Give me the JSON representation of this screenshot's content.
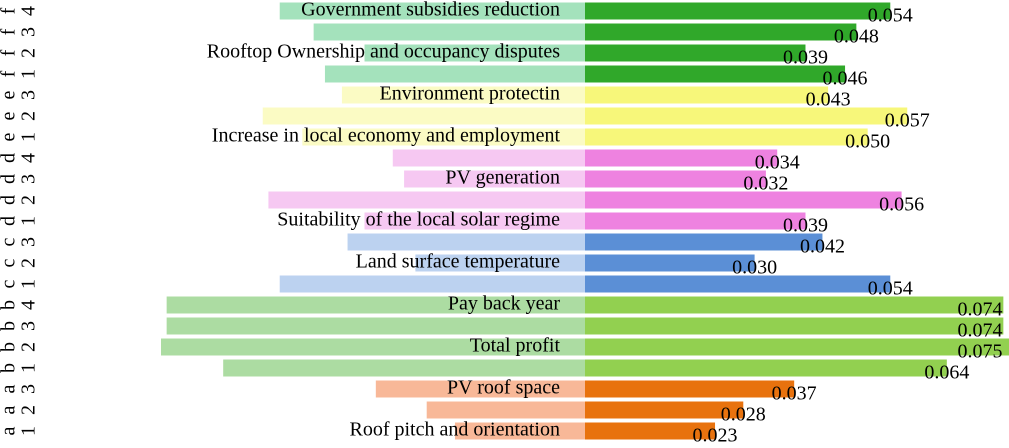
{
  "chart_data": {
    "type": "butterfly",
    "categories": [
      [
        "a",
        "1"
      ],
      [
        "a",
        "2"
      ],
      [
        "a",
        "3"
      ],
      [
        "b",
        "1"
      ],
      [
        "b",
        "2"
      ],
      [
        "b",
        "3"
      ],
      [
        "b",
        "4"
      ],
      [
        "c",
        "1"
      ],
      [
        "c",
        "2"
      ],
      [
        "c",
        "3"
      ],
      [
        "d",
        "1"
      ],
      [
        "d",
        "2"
      ],
      [
        "d",
        "3"
      ],
      [
        "d",
        "4"
      ],
      [
        "e",
        "1"
      ],
      [
        "e",
        "2"
      ],
      [
        "e",
        "3"
      ],
      [
        "f",
        "1"
      ],
      [
        "f",
        "2"
      ],
      [
        "f",
        "3"
      ],
      [
        "f",
        "4"
      ]
    ],
    "series": [
      {
        "values": [
          0.023,
          0.028,
          0.037,
          0.064,
          0.075,
          0.074,
          0.074,
          0.054,
          0.03,
          0.042,
          0.039,
          0.056,
          0.032,
          0.034,
          0.05,
          0.057,
          0.043,
          0.046,
          0.039,
          0.048,
          0.054
        ],
        "value_labels": [
          "0.023",
          "0.028",
          "0.037",
          "0.064",
          "0.075",
          "0.074",
          "0.074",
          "0.054",
          "0.030",
          "0.042",
          "0.039",
          "0.056",
          "0.032",
          "0.034",
          "0.050",
          "0.057",
          "0.043",
          "0.046",
          "0.039",
          "0.048",
          "0.054"
        ],
        "colors": [
          "#e8720e",
          "#e8720e",
          "#e8720e",
          "#92d050",
          "#92d050",
          "#92d050",
          "#92d050",
          "#5b8fd6",
          "#5b8fd6",
          "#5b8fd6",
          "#ee82e0",
          "#ee82e0",
          "#ee82e0",
          "#ee82e0",
          "#f7f77a",
          "#f7f77a",
          "#f7f77a",
          "#30a82a",
          "#30a82a",
          "#30a82a",
          "#30a82a"
        ],
        "mirror_colors": [
          "#f8b898",
          "#f8b898",
          "#f8b898",
          "#acdca2",
          "#acdca2",
          "#acdca2",
          "#acdca2",
          "#bcd2f0",
          "#bcd2f0",
          "#bcd2f0",
          "#f6c8f2",
          "#f6c8f2",
          "#f6c8f2",
          "#f6c8f2",
          "#fbfbc4",
          "#fbfbc4",
          "#fbfbc4",
          "#a4e2bc",
          "#a4e2bc",
          "#a4e2bc",
          "#a4e2bc"
        ]
      }
    ],
    "annotations": [
      "Government subsidies reduction",
      "Rooftop Ownership and occupancy disputes",
      "Environment protectin",
      "Increase in local economy and employment",
      "PV generation",
      "Suitability of the local solar regime",
      "Land surface temperature",
      "Pay back year",
      "Total profit",
      "PV roof space",
      "Roof pitch and orientation"
    ]
  }
}
